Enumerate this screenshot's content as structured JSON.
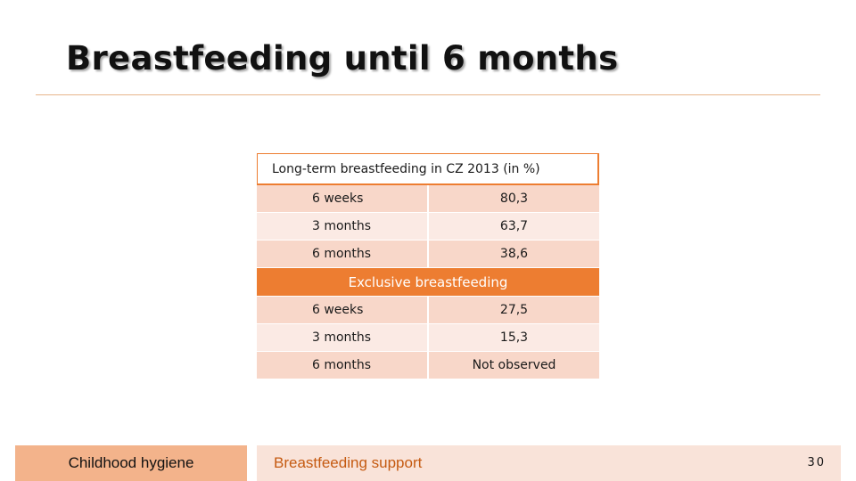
{
  "title": "Breastfeeding until 6 months",
  "table": {
    "header": "Long-term breastfeeding in CZ 2013 (in %)",
    "section1_rows": [
      {
        "period": "6 weeks",
        "value": "80,3"
      },
      {
        "period": "3 months",
        "value": "63,7"
      },
      {
        "period": "6 months",
        "value": "38,6"
      }
    ],
    "subheader": "Exclusive breastfeeding",
    "section2_rows": [
      {
        "period": "6 weeks",
        "value": "27,5"
      },
      {
        "period": "3 months",
        "value": "15,3"
      },
      {
        "period": "6 months",
        "value": "Not observed"
      }
    ]
  },
  "footer": {
    "left": "Childhood hygiene",
    "center": "Breastfeeding support",
    "page_number": "30"
  },
  "colors": {
    "accent": "#ed7d31",
    "row_dark": "#f8d7c9",
    "row_light": "#fbeae4",
    "footer_left_bg": "#f3b38b",
    "footer_mid_bg": "#f9e3d9",
    "footer_text": "#c55a11"
  }
}
